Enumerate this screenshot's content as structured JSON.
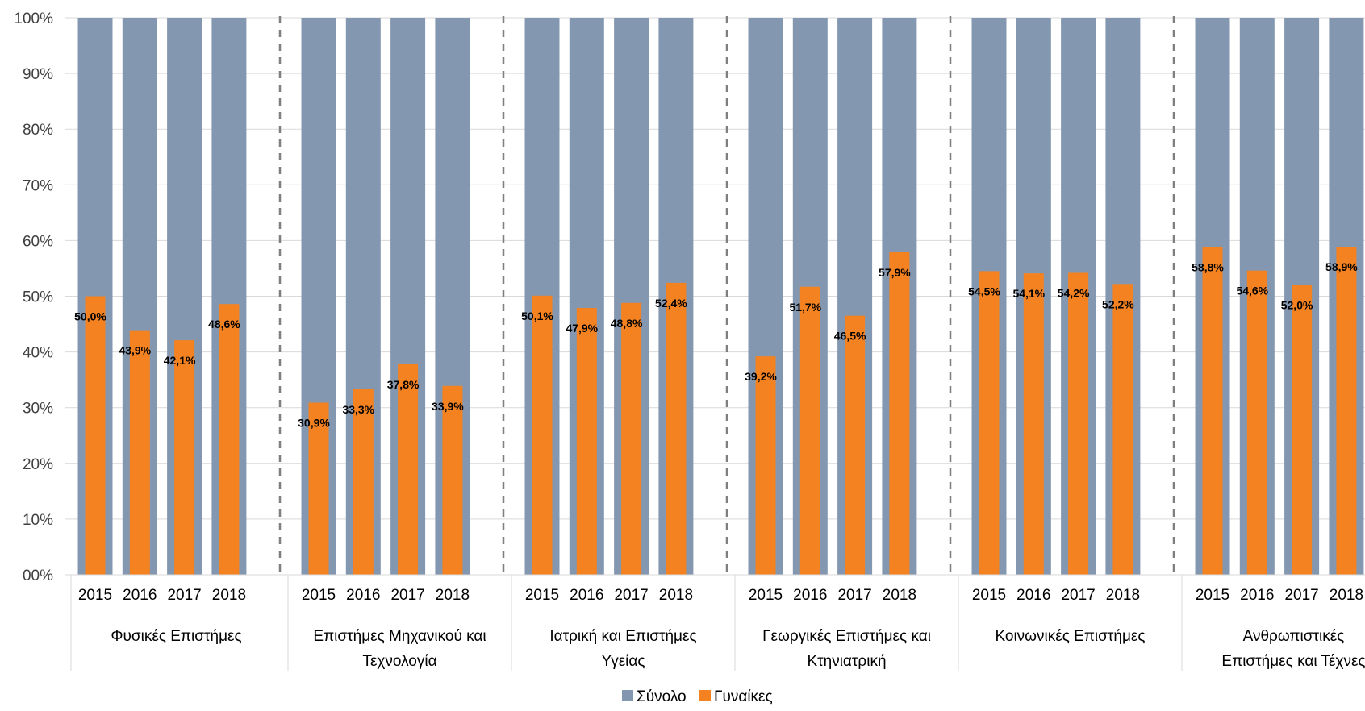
{
  "chart_data": {
    "type": "bar",
    "ylim": [
      0,
      100
    ],
    "y_ticks": [
      "00%",
      "10%",
      "20%",
      "30%",
      "40%",
      "50%",
      "60%",
      "70%",
      "80%",
      "90%",
      "100%"
    ],
    "groups": [
      {
        "label": [
          "Φυσικές Επιστήμες"
        ],
        "years": [
          "2015",
          "2016",
          "2017",
          "2018"
        ]
      },
      {
        "label": [
          "Επιστήμες Μηχανικού και",
          "Τεχνολογία"
        ],
        "years": [
          "2015",
          "2016",
          "2017",
          "2018"
        ]
      },
      {
        "label": [
          "Ιατρική και Επιστήμες",
          "Υγείας"
        ],
        "years": [
          "2015",
          "2016",
          "2017",
          "2018"
        ]
      },
      {
        "label": [
          "Γεωργικές Επιστήμες και",
          "Κτηνιατρική"
        ],
        "years": [
          "2015",
          "2016",
          "2017",
          "2018"
        ]
      },
      {
        "label": [
          "Κοινωνικές Επιστήμες"
        ],
        "years": [
          "2015",
          "2016",
          "2017",
          "2018"
        ]
      },
      {
        "label": [
          "Ανθρωπιστικές",
          "Επιστήμες και Τέχνες"
        ],
        "years": [
          "2015",
          "2016",
          "2017",
          "2018"
        ]
      }
    ],
    "series": [
      {
        "name": "Σύνολο",
        "color": "#8497b0",
        "values": [
          [
            100,
            100,
            100,
            100
          ],
          [
            100,
            100,
            100,
            100
          ],
          [
            100,
            100,
            100,
            100
          ],
          [
            100,
            100,
            100,
            100
          ],
          [
            100,
            100,
            100,
            100
          ],
          [
            100,
            100,
            100,
            100
          ]
        ]
      },
      {
        "name": "Γυναίκες",
        "color": "#f58220",
        "values": [
          [
            50.0,
            43.9,
            42.1,
            48.6
          ],
          [
            30.9,
            33.3,
            37.8,
            33.9
          ],
          [
            50.1,
            47.9,
            48.8,
            52.4
          ],
          [
            39.2,
            51.7,
            46.5,
            57.9
          ],
          [
            54.5,
            54.1,
            54.2,
            52.2
          ],
          [
            58.8,
            54.6,
            52.0,
            58.9
          ]
        ],
        "labels": [
          [
            "50,0%",
            "43,9%",
            "42,1%",
            "48,6%"
          ],
          [
            "30,9%",
            "33,3%",
            "37,8%",
            "33,9%"
          ],
          [
            "50,1%",
            "47,9%",
            "48,8%",
            "52,4%"
          ],
          [
            "39,2%",
            "51,7%",
            "46,5%",
            "57,9%"
          ],
          [
            "54,5%",
            "54,1%",
            "54,2%",
            "52,2%"
          ],
          [
            "58,8%",
            "54,6%",
            "52,0%",
            "58,9%"
          ]
        ]
      }
    ],
    "legend": "bottom"
  }
}
